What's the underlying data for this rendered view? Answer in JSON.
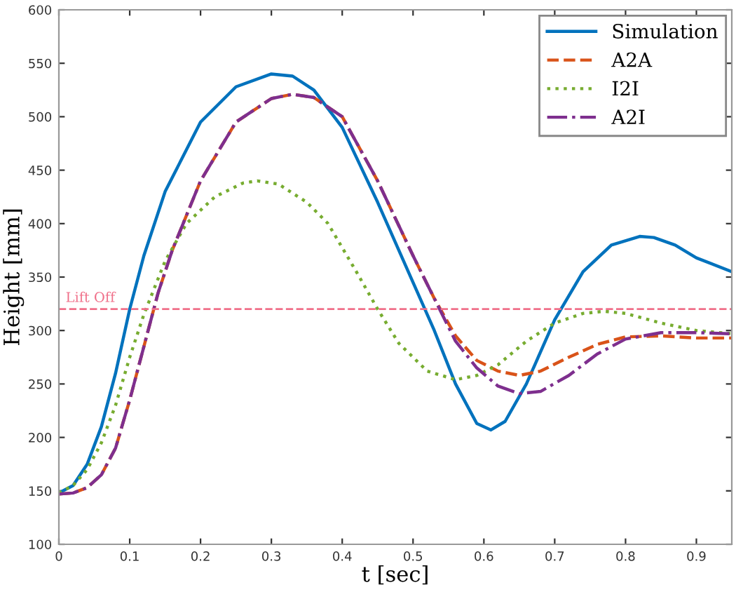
{
  "chart_data": {
    "type": "line",
    "xlabel": "t [sec]",
    "ylabel": "Height [mm]",
    "xlim": [
      0,
      0.95
    ],
    "xticks": [
      0,
      0.1,
      0.2,
      0.3,
      0.4,
      0.5,
      0.6,
      0.7,
      0.8,
      0.9
    ],
    "ylim": [
      100,
      600
    ],
    "yticks": [
      100,
      150,
      200,
      250,
      300,
      350,
      400,
      450,
      500,
      550,
      600
    ],
    "grid": false,
    "legend": "top right",
    "marker": "none",
    "series": [
      {
        "name": "Simulation",
        "color": "#0072bd",
        "line_style": "solid",
        "x": [
          0,
          0.02,
          0.04,
          0.06,
          0.08,
          0.1,
          0.12,
          0.15,
          0.2,
          0.25,
          0.3,
          0.33,
          0.36,
          0.4,
          0.45,
          0.5,
          0.53,
          0.56,
          0.59,
          0.61,
          0.63,
          0.66,
          0.7,
          0.74,
          0.78,
          0.82,
          0.84,
          0.87,
          0.9,
          0.95
        ],
        "values": [
          148,
          155,
          175,
          210,
          260,
          320,
          370,
          430,
          495,
          528,
          540,
          538,
          525,
          490,
          420,
          345,
          300,
          250,
          213,
          207,
          215,
          250,
          310,
          355,
          380,
          388,
          387,
          380,
          368,
          355
        ]
      },
      {
        "name": "A2A",
        "color": "#d95319",
        "line_style": "dashed",
        "x": [
          0,
          0.02,
          0.04,
          0.06,
          0.08,
          0.1,
          0.12,
          0.14,
          0.16,
          0.2,
          0.25,
          0.3,
          0.33,
          0.36,
          0.4,
          0.45,
          0.5,
          0.53,
          0.56,
          0.59,
          0.62,
          0.65,
          0.68,
          0.72,
          0.76,
          0.8,
          0.85,
          0.9,
          0.95
        ],
        "values": [
          147,
          148,
          153,
          165,
          190,
          235,
          285,
          335,
          375,
          440,
          495,
          517,
          521,
          518,
          500,
          440,
          370,
          330,
          295,
          272,
          262,
          258,
          262,
          275,
          287,
          294,
          295,
          293,
          293
        ]
      },
      {
        "name": "I2I",
        "color": "#77ac30",
        "line_style": "dotted",
        "x": [
          0,
          0.02,
          0.04,
          0.06,
          0.08,
          0.1,
          0.12,
          0.15,
          0.18,
          0.22,
          0.26,
          0.28,
          0.31,
          0.35,
          0.38,
          0.42,
          0.45,
          0.48,
          0.52,
          0.56,
          0.59,
          0.62,
          0.66,
          0.7,
          0.74,
          0.77,
          0.8,
          0.85,
          0.9,
          0.95
        ],
        "values": [
          148,
          155,
          170,
          195,
          230,
          275,
          315,
          365,
          400,
          425,
          438,
          440,
          437,
          420,
          400,
          355,
          320,
          288,
          262,
          254,
          258,
          268,
          290,
          307,
          316,
          318,
          316,
          307,
          300,
          297
        ]
      },
      {
        "name": "A2I",
        "color": "#7e2f8e",
        "line_style": "dashdot",
        "x": [
          0,
          0.02,
          0.04,
          0.06,
          0.08,
          0.1,
          0.12,
          0.14,
          0.16,
          0.2,
          0.25,
          0.3,
          0.33,
          0.36,
          0.4,
          0.45,
          0.5,
          0.53,
          0.56,
          0.59,
          0.62,
          0.65,
          0.68,
          0.72,
          0.76,
          0.8,
          0.85,
          0.9,
          0.95
        ],
        "values": [
          147,
          148,
          153,
          165,
          190,
          235,
          285,
          335,
          375,
          440,
          495,
          517,
          521,
          518,
          500,
          440,
          370,
          330,
          290,
          265,
          248,
          241,
          243,
          258,
          278,
          292,
          298,
          298,
          297
        ]
      }
    ],
    "ref_lines": [
      {
        "axis": "y",
        "value": 320,
        "label": "Lift Off",
        "color": "#f0708a",
        "line_style": "dashed"
      }
    ]
  }
}
